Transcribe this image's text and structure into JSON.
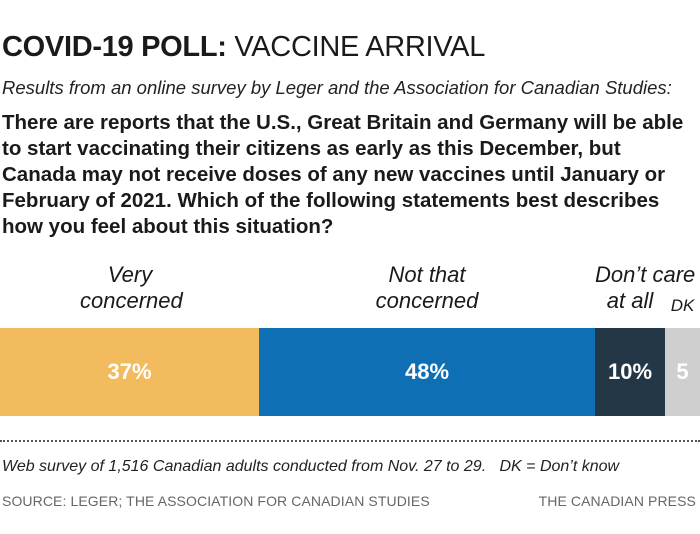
{
  "header": {
    "title_strong": "COVID-19 POLL:",
    "title_rest": "VACCINE ARRIVAL",
    "subtitle": "Results from an online survey by Leger and the Association for Canadian Studies:",
    "question": "There are reports that the U.S., Great Britain and Germany will be able to start vaccinating their citizens as early as this December, but Canada may not receive doses of any new vaccines until January or February of 2021. Which of the following statements best describes how you feel about this situation?"
  },
  "chart_data": {
    "type": "bar",
    "orientation": "horizontal-stacked",
    "categories": [
      "Very concerned",
      "Not that concerned",
      "Don’t care at all",
      "DK"
    ],
    "values": [
      37,
      48,
      10,
      5
    ],
    "value_labels": [
      "37%",
      "48%",
      "10%",
      "5"
    ],
    "colors": [
      "#f2bc5e",
      "#0e6fb5",
      "#233746",
      "#cfcfcf"
    ],
    "label_lines": [
      [
        "Very",
        "concerned"
      ],
      [
        "Not that",
        "concerned"
      ],
      [
        "Don’t care",
        "at all"
      ],
      [
        "DK"
      ]
    ]
  },
  "footer": {
    "note": "Web survey of 1,516 Canadian adults conducted from Nov. 27 to 29.   DK = Don’t know",
    "source": "SOURCE: LEGER; THE ASSOCIATION FOR CANADIAN STUDIES",
    "credit": "THE CANADIAN PRESS"
  }
}
